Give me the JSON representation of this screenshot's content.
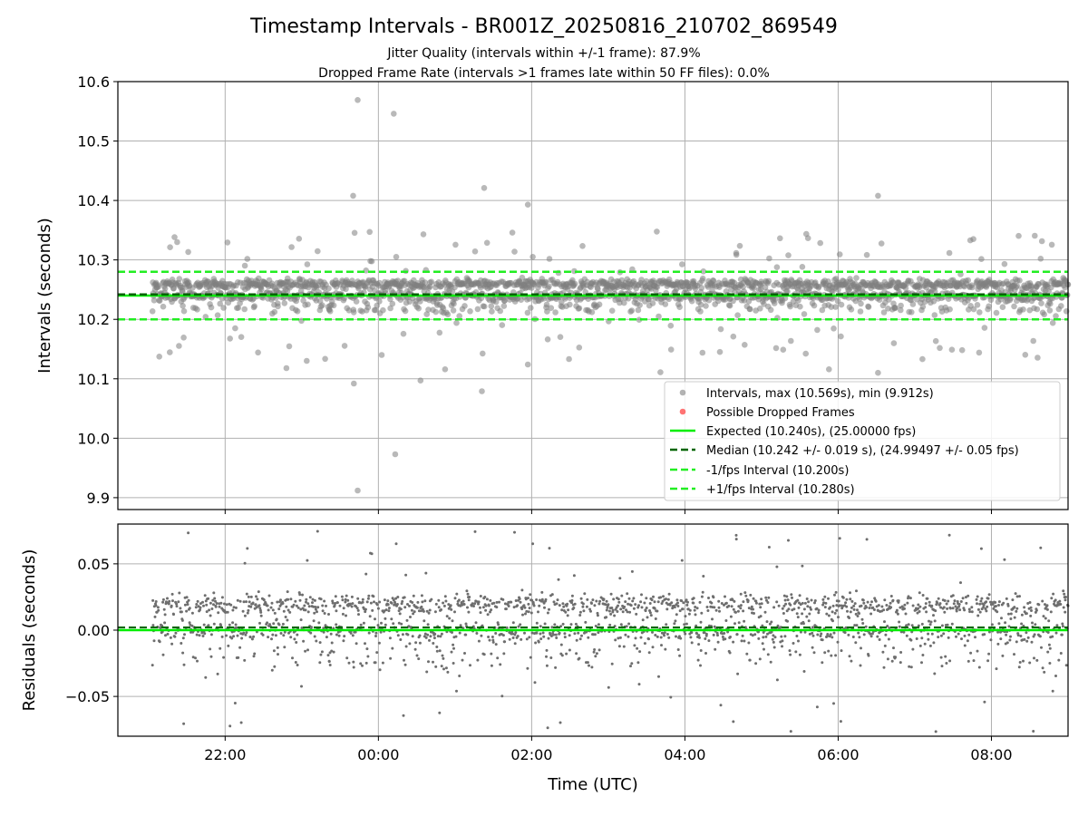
{
  "chart_data": {
    "type": "scatter",
    "title": "Timestamp Intervals - BR001Z_20250816_210702_869549",
    "subtitles": [
      "Jitter Quality (intervals within +/-1 frame): 87.9%",
      "Dropped Frame Rate (intervals >1 frames late within 50 FF files): 0.0%"
    ],
    "xlabel": "Time (UTC)",
    "x_ticks": [
      "22:00",
      "00:00",
      "02:00",
      "04:00",
      "06:00",
      "08:00"
    ],
    "x_range_hours": [
      -3.4,
      9.0
    ],
    "data_range_hours": [
      -2.95,
      9.0
    ],
    "grid": true,
    "legend_position": "lower-right",
    "colors": {
      "intervals": "#808080",
      "dropped": "#ff4444",
      "expected": "#00ee00",
      "median": "#006400",
      "bounds": "#22ee22",
      "residuals": "#6e6e6e"
    },
    "top_panel": {
      "ylabel": "Intervals (seconds)",
      "ylim": [
        9.88,
        10.6
      ],
      "y_ticks": [
        "9.9",
        "10.0",
        "10.1",
        "10.2",
        "10.3",
        "10.4",
        "10.5",
        "10.6"
      ],
      "expected": 10.24,
      "median": 10.242,
      "lower_bound": 10.2,
      "upper_bound": 10.28,
      "max": 10.569,
      "min": 9.912,
      "outliers": [
        {
          "t": -0.27,
          "v": 10.569
        },
        {
          "t": 0.2,
          "v": 10.546
        },
        {
          "t": -0.33,
          "v": 10.408
        },
        {
          "t": 1.38,
          "v": 10.421
        },
        {
          "t": 6.52,
          "v": 10.408
        },
        {
          "t": 1.95,
          "v": 10.393
        },
        {
          "t": -0.27,
          "v": 9.912
        },
        {
          "t": 0.22,
          "v": 9.973
        },
        {
          "t": -0.32,
          "v": 10.092
        },
        {
          "t": 1.35,
          "v": 10.079
        },
        {
          "t": 0.55,
          "v": 10.097
        },
        {
          "t": 6.52,
          "v": 10.11
        },
        {
          "t": 3.68,
          "v": 10.111
        },
        {
          "t": 5.88,
          "v": 10.116
        },
        {
          "t": -1.2,
          "v": 10.118
        },
        {
          "t": 0.87,
          "v": 10.116
        },
        {
          "t": 1.95,
          "v": 10.124
        },
        {
          "t": 7.1,
          "v": 10.133
        }
      ],
      "legend": [
        "Intervals, max (10.569s), min (9.912s)",
        "Possible Dropped Frames",
        "Expected (10.240s), (25.00000 fps)",
        "Median (10.242 +/- 0.019 s), (24.99497 +/- 0.05 fps)",
        "-1/fps Interval (10.200s)",
        "+1/fps Interval (10.280s)"
      ]
    },
    "bottom_panel": {
      "ylabel": "Residuals (seconds)",
      "ylim": [
        -0.08,
        0.08
      ],
      "y_ticks": [
        "−0.05",
        "0.00",
        "0.05"
      ],
      "zero_line": 0.0,
      "median_residual": 0.002
    }
  }
}
